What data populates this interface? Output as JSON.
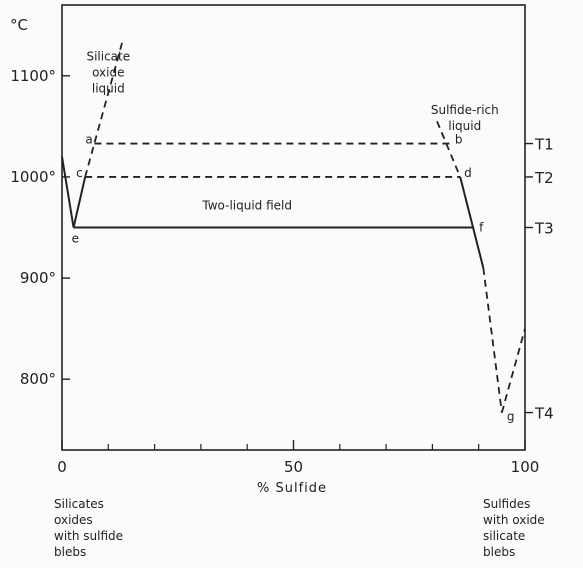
{
  "chart_data": {
    "type": "line",
    "title": "",
    "xlabel": "% Sulfide",
    "ylabel": "°C",
    "xlim": [
      0,
      100
    ],
    "ylim": [
      730,
      1170
    ],
    "x_ticks": [
      0,
      50,
      100
    ],
    "x_minor_ticks": [
      10,
      20,
      30,
      40,
      60,
      70,
      80,
      90
    ],
    "y_ticks": [
      {
        "value": 800,
        "label": "800°"
      },
      {
        "value": 900,
        "label": "900°"
      },
      {
        "value": 1000,
        "label": "1000°"
      },
      {
        "value": 1100,
        "label": "1100°"
      }
    ],
    "temperature_levels": [
      {
        "name": "T1",
        "value": 1033
      },
      {
        "name": "T2",
        "value": 1000
      },
      {
        "name": "T3",
        "value": 950
      },
      {
        "name": "T4",
        "value": 767
      }
    ],
    "points": [
      {
        "label": "a",
        "x": 7,
        "y": 1033
      },
      {
        "label": "b",
        "x": 84,
        "y": 1033
      },
      {
        "label": "c",
        "x": 5,
        "y": 1000
      },
      {
        "label": "d",
        "x": 86,
        "y": 1000
      },
      {
        "label": "e",
        "x": 2.5,
        "y": 950
      },
      {
        "label": "f",
        "x": 89,
        "y": 950
      },
      {
        "label": "g",
        "x": 95,
        "y": 767
      }
    ],
    "series": [
      {
        "style": "solid",
        "x": [
          0,
          2.5
        ],
        "y": [
          1020,
          950
        ]
      },
      {
        "style": "solid",
        "x": [
          2.5,
          5
        ],
        "y": [
          950,
          1000
        ]
      },
      {
        "style": "dashed",
        "x": [
          5,
          13
        ],
        "y": [
          1000,
          1133
        ]
      },
      {
        "style": "solid",
        "x": [
          2.5,
          89
        ],
        "y": [
          950,
          950
        ]
      },
      {
        "style": "dashed",
        "x": [
          7,
          84
        ],
        "y": [
          1033,
          1033
        ]
      },
      {
        "style": "dashed",
        "x": [
          5,
          86
        ],
        "y": [
          1000,
          1000
        ]
      },
      {
        "style": "dashed",
        "x": [
          81,
          86
        ],
        "y": [
          1055,
          1000
        ]
      },
      {
        "style": "solid",
        "x": [
          86,
          91
        ],
        "y": [
          1000,
          910
        ]
      },
      {
        "style": "dashed",
        "x": [
          91,
          95
        ],
        "y": [
          910,
          767
        ]
      },
      {
        "style": "dashed",
        "x": [
          95,
          100
        ],
        "y": [
          767,
          850
        ]
      }
    ],
    "annotations": [
      {
        "lines": [
          "Silicate",
          "oxide",
          "liquid"
        ],
        "x": 10,
        "y": 1115
      },
      {
        "lines": [
          "Sulfide-rich",
          "liquid"
        ],
        "x": 87,
        "y": 1062
      },
      {
        "lines": [
          "Two-liquid field"
        ],
        "x": 40,
        "y": 968
      }
    ],
    "grid": false
  },
  "captions": {
    "left": "Silicates\noxides\nwith sulfide\nblebs",
    "right": "Sulfides\nwith oxide\nsilicate\nblebs"
  },
  "colors": {
    "ink": "#222222",
    "paper": "#fbfbf9"
  }
}
